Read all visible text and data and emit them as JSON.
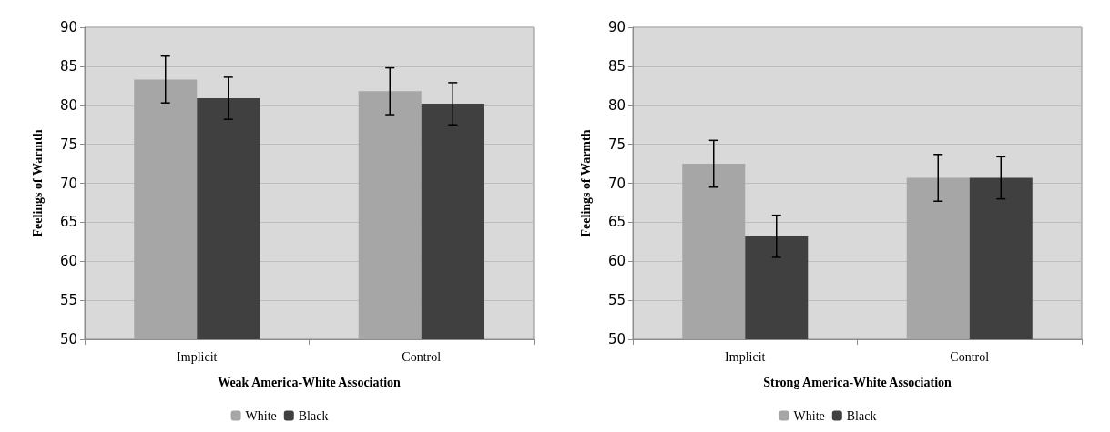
{
  "chart_data": [
    {
      "type": "bar",
      "categories": [
        "Implicit",
        "Control"
      ],
      "xlabel": "Weak America-White Association",
      "ylabel": "Feelings of Warmth",
      "ylim": [
        50,
        90
      ],
      "yticks": [
        50,
        55,
        60,
        65,
        70,
        75,
        80,
        85,
        90
      ],
      "grid": "y",
      "legend": "bottom",
      "series": [
        {
          "name": "White",
          "color": "#a6a6a6",
          "values": [
            83.3,
            81.8
          ],
          "errors": [
            3,
            3
          ]
        },
        {
          "name": "Black",
          "color": "#404040",
          "values": [
            80.9,
            80.2
          ],
          "errors": [
            2.7,
            2.7
          ]
        }
      ]
    },
    {
      "type": "bar",
      "categories": [
        "Implicit",
        "Control"
      ],
      "xlabel": "Strong America-White Association",
      "ylabel": "Feelings of Warmth",
      "ylim": [
        50,
        90
      ],
      "yticks": [
        50,
        55,
        60,
        65,
        70,
        75,
        80,
        85,
        90
      ],
      "grid": "y",
      "legend": "bottom",
      "series": [
        {
          "name": "White",
          "color": "#a6a6a6",
          "values": [
            72.5,
            70.7
          ],
          "errors": [
            3,
            3
          ]
        },
        {
          "name": "Black",
          "color": "#404040",
          "values": [
            63.2,
            70.7
          ],
          "errors": [
            2.7,
            2.7
          ]
        }
      ]
    }
  ]
}
